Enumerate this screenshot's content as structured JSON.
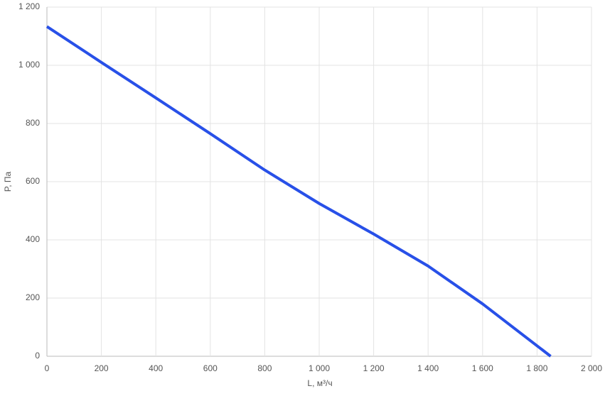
{
  "chart_data": {
    "type": "line",
    "x_label": "L, м³/ч",
    "y_label": "P, Па",
    "x": [
      0,
      200,
      400,
      600,
      800,
      1000,
      1200,
      1400,
      1600,
      1850
    ],
    "series": [
      {
        "color": "#2850e8",
        "values": [
          1133,
          1010,
          888,
          765,
          640,
          525,
          420,
          310,
          180,
          0
        ]
      }
    ],
    "xlim": [
      0,
      2000
    ],
    "xticks": [
      0,
      200,
      400,
      600,
      800,
      {
        "value": 1000,
        "label": "1 000"
      },
      {
        "value": 1200,
        "label": "1 200"
      },
      {
        "value": 1400,
        "label": "1 400"
      },
      {
        "value": 1600,
        "label": "1 600"
      },
      {
        "value": 1800,
        "label": "1 800"
      },
      {
        "value": 2000,
        "label": "2 000"
      }
    ],
    "ylim": [
      0,
      1200
    ],
    "yticks": [
      0,
      200,
      400,
      600,
      800,
      {
        "value": 1000,
        "label": "1 000"
      },
      {
        "value": 1200,
        "label": "1 200"
      }
    ],
    "grid": true
  }
}
